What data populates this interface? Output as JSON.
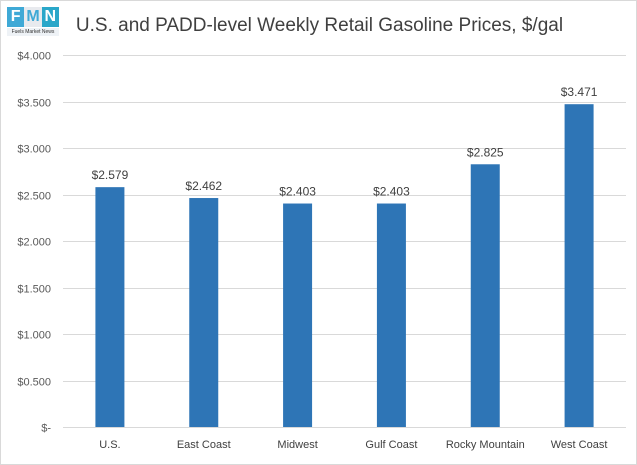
{
  "logo": {
    "letters": [
      "F",
      "M",
      "N"
    ],
    "tagline": "Fuels Market News",
    "colors": [
      "#3fa9d6",
      "#e8eaee",
      "#2aa7c9"
    ]
  },
  "chart_data": {
    "type": "bar",
    "title": "U.S. and PADD-level Weekly Retail Gasoline Prices, $/gal",
    "xlabel": "",
    "ylabel": "",
    "categories": [
      "U.S.",
      "East Coast",
      "Midwest",
      "Gulf Coast",
      "Rocky Mountain",
      "West Coast"
    ],
    "values": [
      2.579,
      2.462,
      2.403,
      2.403,
      2.825,
      3.471
    ],
    "data_labels": [
      "$2.579",
      "$2.462",
      "$2.403",
      "$2.403",
      "$2.825",
      "$3.471"
    ],
    "ylim": [
      0,
      4.0
    ],
    "yticks": [
      0,
      0.5,
      1.0,
      1.5,
      2.0,
      2.5,
      3.0,
      3.5,
      4.0
    ],
    "ytick_labels": [
      "$-",
      "$0.500",
      "$1.000",
      "$1.500",
      "$2.000",
      "$2.500",
      "$3.000",
      "$3.500",
      "$4.000"
    ],
    "bar_color": "#2e75b6",
    "gridline_color": "#d9d9d9",
    "grid": true,
    "legend": "none"
  }
}
